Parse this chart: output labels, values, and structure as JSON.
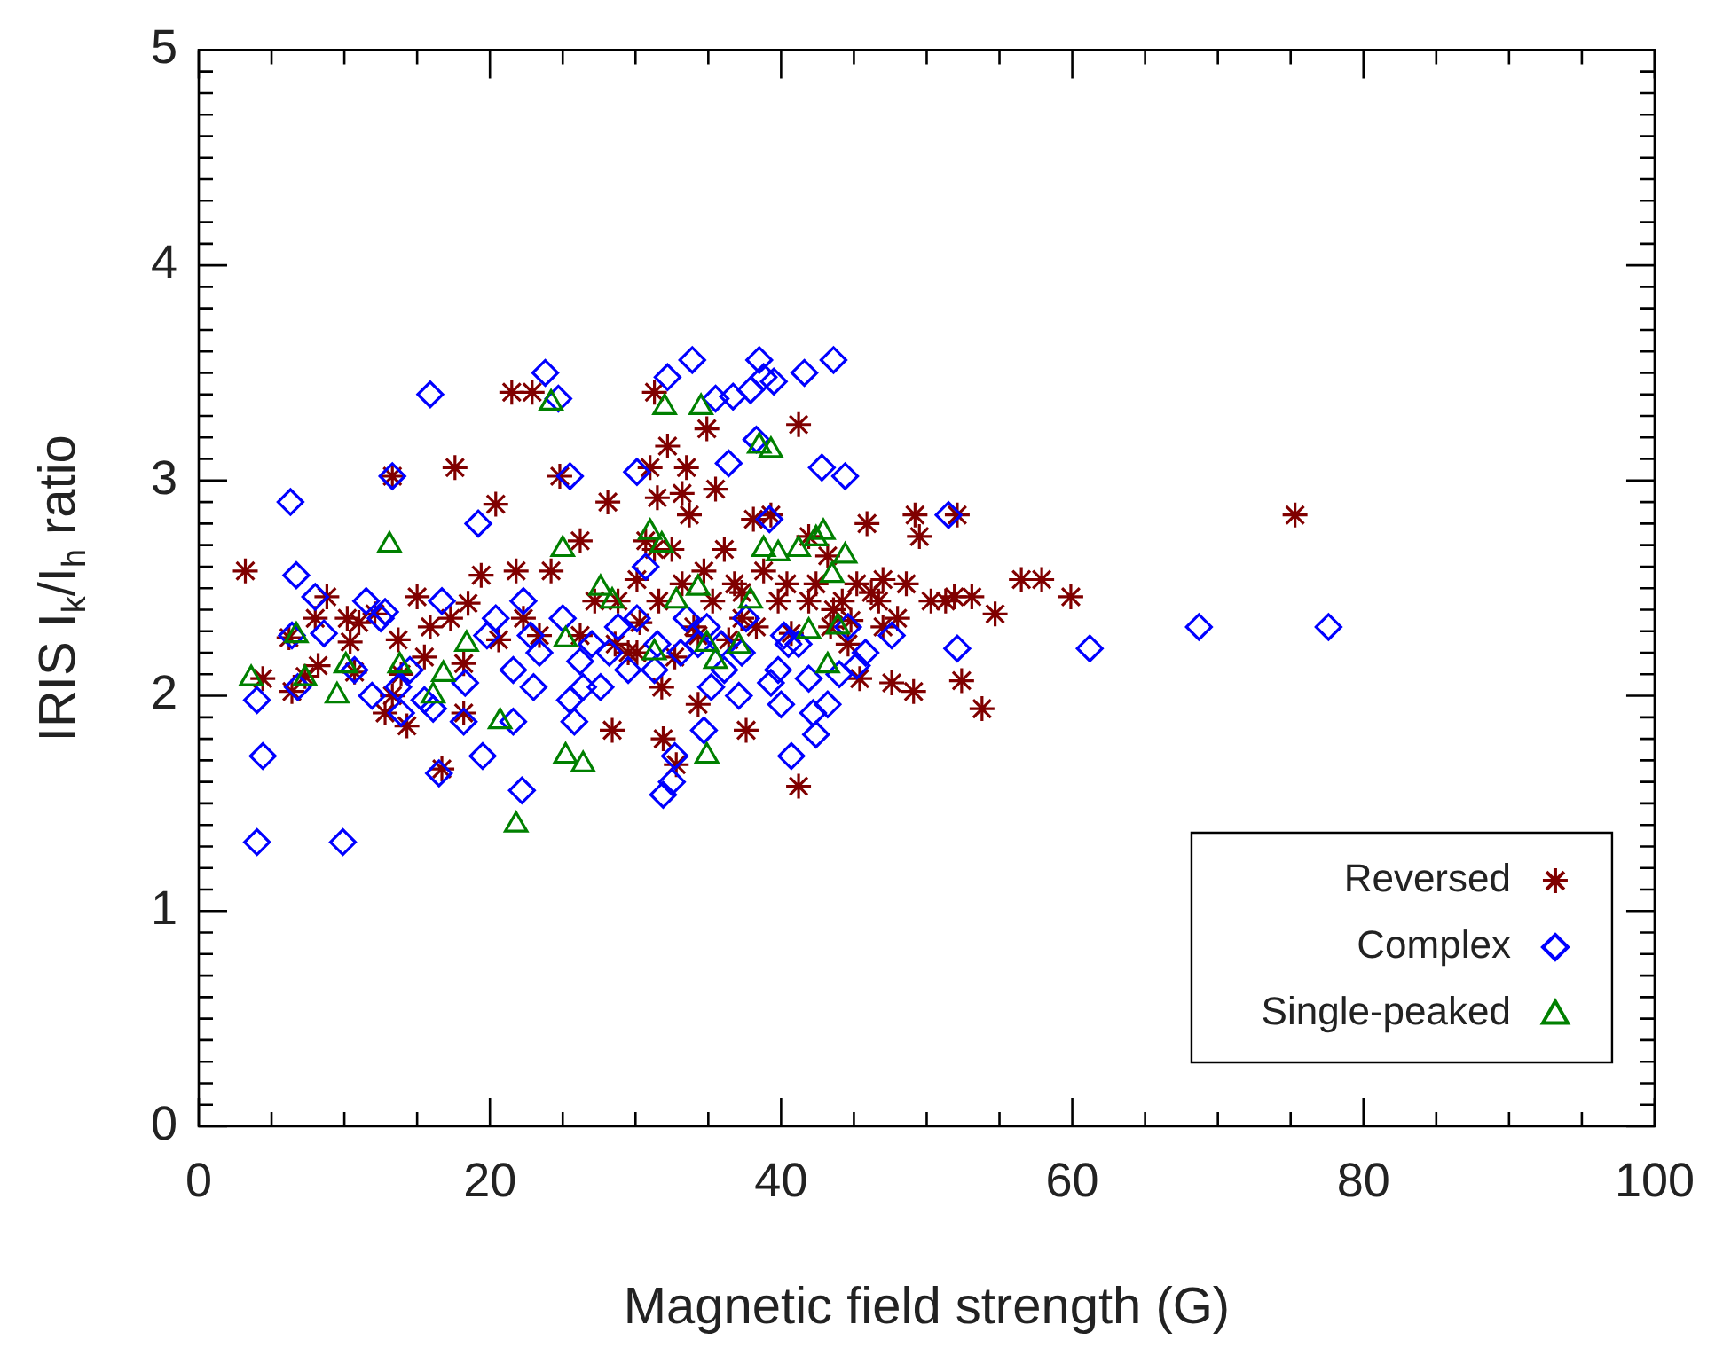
{
  "chart_data": {
    "type": "scatter",
    "xlabel": "Magnetic field strength (G)",
    "ylabel": "IRIS I$_{k}$/I$_{h}$ ratio",
    "xlim": [
      0,
      100
    ],
    "ylim": [
      0,
      5
    ],
    "xticks": [
      0,
      20,
      40,
      60,
      80,
      100
    ],
    "yticks": [
      0,
      1,
      2,
      3,
      4,
      5
    ],
    "legend": "bottom right",
    "series": [
      {
        "name": "Reversed",
        "color": "#800000",
        "marker": "cross",
        "x": [
          3.2,
          4.4,
          6.2,
          6.4,
          7.3,
          8.0,
          8.2,
          8.8,
          10.2,
          10.4,
          10.7,
          11.0,
          12.1,
          12.8,
          13.7,
          13.3,
          13.3,
          13.9,
          14.3,
          15.0,
          15.5,
          15.9,
          16.7,
          17.3,
          17.6,
          18.2,
          18.5,
          18.2,
          19.4,
          20.4,
          20.6,
          21.5,
          22.9,
          21.8,
          22.3,
          23.4,
          24.2,
          24.8,
          26.2,
          26.2,
          27.2,
          28.1,
          28.4,
          28.6,
          28.8,
          29.5,
          30.1,
          30.1,
          30.3,
          30.7,
          31.0,
          31.3,
          31.3,
          31.5,
          31.6,
          31.8,
          31.9,
          32.2,
          32.5,
          32.7,
          32.8,
          33.2,
          33.2,
          33.5,
          33.7,
          34.0,
          34.3,
          34.3,
          34.7,
          34.9,
          35.3,
          35.5,
          36.1,
          36.4,
          36.8,
          37.3,
          37.3,
          37.6,
          38.1,
          38.3,
          38.8,
          39.3,
          39.8,
          40.4,
          40.7,
          41.2,
          41.2,
          41.9,
          41.9,
          42.4,
          43.2,
          43.4,
          43.6,
          44.2,
          44.6,
          44.8,
          45.2,
          45.4,
          45.9,
          46.2,
          46.7,
          47.0,
          47.0,
          47.6,
          48.0,
          48.6,
          49.1,
          49.2,
          49.5,
          50.3,
          51.3,
          51.9,
          52.1,
          52.4,
          53.1,
          53.8,
          54.7,
          56.5,
          57.9,
          59.9,
          75.3
        ],
        "values": [
          2.58,
          2.08,
          2.27,
          2.02,
          2.09,
          2.36,
          2.14,
          2.46,
          2.36,
          2.25,
          2.11,
          2.34,
          2.38,
          1.92,
          2.26,
          3.02,
          2.0,
          2.1,
          1.86,
          2.46,
          2.18,
          2.32,
          1.66,
          2.36,
          3.06,
          2.15,
          2.43,
          1.92,
          2.56,
          2.89,
          2.26,
          3.41,
          3.41,
          2.58,
          2.36,
          2.28,
          2.58,
          3.02,
          2.28,
          2.72,
          2.44,
          2.9,
          1.84,
          2.24,
          2.44,
          2.2,
          2.54,
          2.2,
          2.34,
          2.72,
          3.06,
          3.41,
          2.68,
          2.92,
          2.44,
          2.04,
          1.8,
          3.16,
          2.68,
          2.18,
          1.68,
          2.52,
          2.94,
          3.06,
          2.84,
          2.32,
          1.96,
          2.28,
          2.58,
          3.24,
          2.44,
          2.96,
          2.68,
          2.26,
          2.52,
          2.48,
          2.36,
          1.84,
          2.82,
          2.32,
          2.58,
          2.84,
          2.44,
          2.52,
          2.29,
          3.26,
          1.58,
          2.74,
          2.44,
          2.52,
          2.65,
          2.32,
          2.4,
          2.44,
          2.24,
          2.35,
          2.52,
          2.08,
          2.8,
          2.48,
          2.44,
          2.54,
          2.32,
          2.06,
          2.36,
          2.52,
          2.02,
          2.84,
          2.74,
          2.44,
          2.44,
          2.46,
          2.84,
          2.07,
          2.46,
          1.94,
          2.38,
          2.54,
          2.54,
          2.46,
          2.84
        ]
      },
      {
        "name": "Complex",
        "color": "#0000ff",
        "marker": "diamond",
        "x": [
          4.0,
          4.4,
          4.0,
          6.3,
          6.7,
          6.4,
          6.8,
          8.0,
          8.6,
          9.9,
          10.7,
          11.5,
          11.9,
          12.5,
          12.8,
          13.3,
          13.7,
          13.9,
          14.5,
          15.5,
          15.9,
          16.1,
          16.5,
          16.7,
          18.2,
          18.3,
          19.2,
          19.5,
          19.8,
          20.4,
          21.6,
          21.6,
          22.2,
          22.3,
          22.8,
          23.0,
          23.4,
          23.8,
          24.7,
          25.0,
          25.5,
          25.5,
          25.8,
          26.2,
          26.4,
          27.0,
          27.6,
          28.2,
          28.8,
          29.5,
          30.1,
          30.1,
          30.7,
          31.3,
          31.5,
          31.9,
          32.2,
          32.5,
          32.7,
          33.1,
          33.5,
          33.9,
          34.3,
          34.7,
          34.9,
          35.2,
          35.5,
          35.9,
          36.1,
          36.4,
          36.7,
          37.1,
          37.3,
          37.6,
          37.9,
          38.3,
          38.5,
          38.8,
          39.2,
          39.3,
          39.5,
          39.8,
          40.0,
          40.2,
          40.5,
          40.7,
          41.2,
          41.6,
          41.9,
          42.2,
          42.4,
          42.8,
          43.2,
          43.6,
          44.0,
          44.4,
          44.6,
          45.2,
          45.8,
          47.6,
          51.5,
          52.1,
          61.2,
          68.7,
          77.6
        ],
        "values": [
          1.32,
          1.72,
          1.98,
          2.9,
          2.56,
          2.28,
          2.04,
          2.46,
          2.29,
          1.32,
          2.12,
          2.44,
          2.0,
          2.36,
          2.39,
          3.02,
          2.04,
          1.92,
          2.12,
          1.98,
          3.4,
          1.94,
          1.64,
          2.44,
          1.88,
          2.06,
          2.8,
          1.72,
          2.28,
          2.36,
          2.12,
          1.88,
          1.56,
          2.44,
          2.28,
          2.04,
          2.2,
          3.5,
          3.38,
          2.36,
          1.98,
          3.02,
          1.88,
          2.16,
          2.04,
          2.24,
          2.04,
          2.2,
          2.32,
          2.12,
          2.36,
          3.04,
          2.6,
          2.12,
          2.24,
          1.54,
          3.48,
          1.6,
          1.72,
          2.2,
          2.36,
          3.56,
          2.24,
          1.84,
          2.32,
          2.04,
          3.38,
          2.24,
          2.12,
          3.08,
          3.39,
          2.0,
          2.2,
          2.36,
          3.42,
          3.19,
          3.56,
          3.48,
          2.82,
          2.06,
          3.46,
          2.12,
          1.96,
          2.28,
          2.24,
          1.72,
          2.24,
          3.5,
          2.08,
          1.92,
          1.82,
          3.06,
          1.96,
          3.56,
          2.1,
          3.02,
          2.32,
          2.14,
          2.2,
          2.28,
          2.84,
          2.22,
          2.22,
          2.32,
          2.32
        ]
      },
      {
        "name": "Single-peaked",
        "color": "#008000",
        "marker": "triangle",
        "x": [
          3.6,
          6.7,
          7.3,
          9.5,
          10.1,
          13.1,
          13.8,
          16.1,
          16.8,
          18.4,
          20.7,
          21.8,
          24.2,
          25.0,
          25.2,
          25.2,
          26.4,
          27.6,
          28.4,
          31.0,
          31.3,
          31.8,
          32.0,
          32.8,
          34.3,
          34.5,
          34.9,
          34.9,
          35.5,
          37.1,
          37.9,
          38.5,
          38.8,
          39.3,
          39.8,
          41.2,
          41.9,
          42.4,
          42.9,
          43.2,
          43.5,
          43.9,
          44.4
        ],
        "values": [
          2.08,
          2.28,
          2.08,
          2.0,
          2.14,
          2.7,
          2.14,
          2.0,
          2.1,
          2.24,
          1.88,
          1.4,
          3.36,
          2.68,
          2.26,
          1.72,
          1.68,
          2.5,
          2.44,
          2.76,
          2.2,
          2.7,
          3.34,
          2.44,
          2.5,
          3.34,
          2.24,
          1.72,
          2.16,
          2.23,
          2.44,
          3.16,
          2.68,
          3.14,
          2.66,
          2.68,
          2.3,
          2.73,
          2.76,
          2.14,
          2.56,
          2.32,
          2.65
        ]
      }
    ]
  }
}
